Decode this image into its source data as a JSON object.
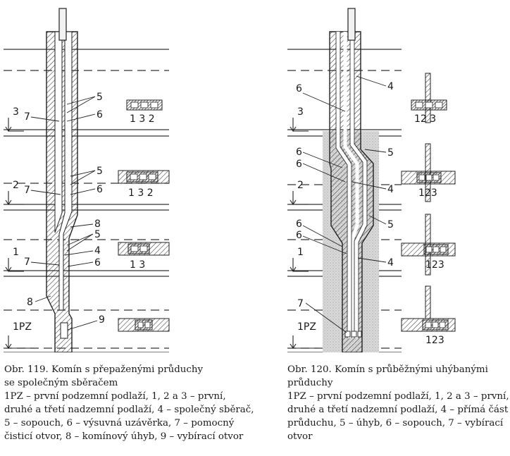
{
  "figure119": {
    "floor_labels": [
      "3",
      "2",
      "1",
      "1PZ"
    ],
    "part_labels": [
      "5",
      "6",
      "7",
      "5",
      "6",
      "7",
      "8",
      "5",
      "4",
      "7",
      "6",
      "8",
      "9"
    ],
    "section_labels": [
      "1 3 2",
      "1 3 2",
      "1 3"
    ],
    "caption": {
      "title": "Obr. 119.  Komín s přepaženými průduchy",
      "subtitle": "se společným sběračem",
      "legend_lines": [
        "1PZ – první podzemní podlaží, 1, 2 a 3 – první,",
        "druhé a třetí nadzemní podlaží, 4 – společný sběrač,",
        "5 – sopouch, 6 – výsuvná uzávěrka, 7 – pomocný",
        "čisticí otvor, 8 – komínový úhyb, 9 – vybírací otvor"
      ]
    }
  },
  "figure120": {
    "floor_labels": [
      "3",
      "2",
      "1",
      "1PZ"
    ],
    "part_labels": [
      "6",
      "4",
      "6",
      "6",
      "5",
      "4",
      "6",
      "6",
      "5",
      "4",
      "7"
    ],
    "section_labels": [
      "12 3",
      "123",
      "123",
      "123"
    ],
    "caption": {
      "title": "Obr. 120.  Komín s průběžnými uhýbanými",
      "subtitle": "průduchy",
      "legend_lines": [
        "1PZ – první podzemní podlaží, 1, 2 a 3 – první,",
        "druhé a třetí nadzemní podlaží, 4 – přímá část",
        "průduchu, 5 – úhyb, 6 – sopouch, 7 – vybírací",
        "otvor"
      ]
    }
  }
}
